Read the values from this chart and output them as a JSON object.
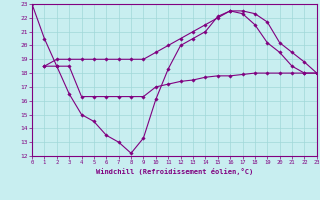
{
  "xlabel": "Windchill (Refroidissement éolien,°C)",
  "bg_color": "#c8eef0",
  "line_color": "#800080",
  "grid_color": "#a0d8d8",
  "xlim": [
    0,
    23
  ],
  "ylim": [
    12,
    23
  ],
  "xticks": [
    0,
    1,
    2,
    3,
    4,
    5,
    6,
    7,
    8,
    9,
    10,
    11,
    12,
    13,
    14,
    15,
    16,
    17,
    18,
    19,
    20,
    21,
    22,
    23
  ],
  "yticks": [
    12,
    13,
    14,
    15,
    16,
    17,
    18,
    19,
    20,
    21,
    22,
    23
  ],
  "lines": [
    {
      "x": [
        0,
        1,
        2,
        3,
        4,
        5,
        6,
        7,
        8,
        9,
        10,
        11,
        12,
        13,
        14,
        15,
        16,
        17,
        18,
        19,
        20,
        21,
        22,
        23
      ],
      "y": [
        23,
        20.5,
        18.5,
        16.5,
        15.0,
        14.5,
        13.5,
        13.0,
        12.2,
        13.3,
        16.1,
        18.3,
        20.0,
        20.5,
        21.0,
        22.1,
        22.5,
        22.3,
        21.5,
        20.2,
        19.5,
        18.5,
        18.0,
        18.0
      ]
    },
    {
      "x": [
        1,
        2,
        3,
        4,
        5,
        6,
        7,
        8,
        9,
        10,
        11,
        12,
        13,
        14,
        15,
        16,
        17,
        18,
        19,
        20,
        21,
        22,
        23
      ],
      "y": [
        18.5,
        19.0,
        19.0,
        19.0,
        19.0,
        19.0,
        19.0,
        19.0,
        19.0,
        19.5,
        20.0,
        20.5,
        21.0,
        21.5,
        22.0,
        22.5,
        22.5,
        22.3,
        21.7,
        20.2,
        19.5,
        18.8,
        18.0
      ]
    },
    {
      "x": [
        1,
        2,
        3,
        4,
        5,
        6,
        7,
        8,
        9,
        10,
        11,
        12,
        13,
        14,
        15,
        16,
        17,
        18,
        19,
        20,
        21,
        22,
        23
      ],
      "y": [
        18.5,
        18.5,
        18.5,
        16.3,
        16.3,
        16.3,
        16.3,
        16.3,
        16.3,
        17.0,
        17.2,
        17.4,
        17.5,
        17.7,
        17.8,
        17.8,
        17.9,
        18.0,
        18.0,
        18.0,
        18.0,
        18.0,
        18.0
      ]
    }
  ]
}
